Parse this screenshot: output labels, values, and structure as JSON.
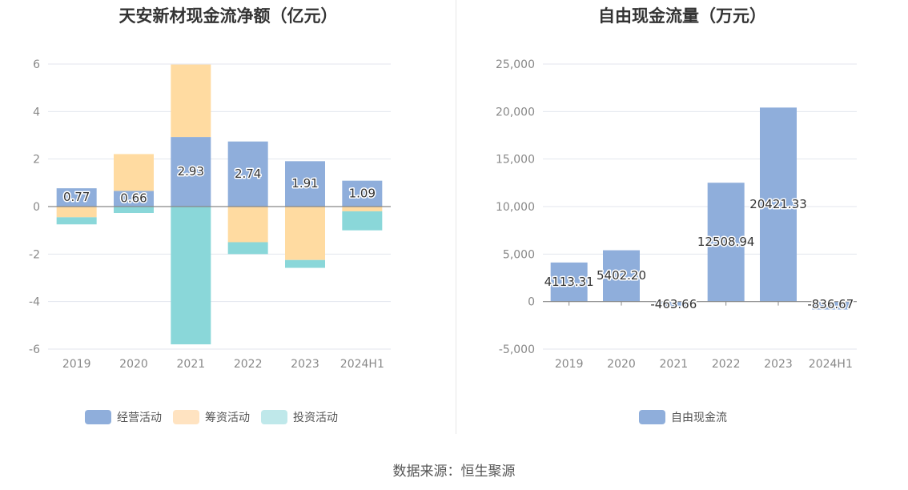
{
  "chart_data": [
    {
      "type": "bar",
      "stacked": true,
      "title": "天安新材现金流净额（亿元）",
      "categories": [
        "2019",
        "2020",
        "2021",
        "2022",
        "2023",
        "2024H1"
      ],
      "series": [
        {
          "name": "经营活动",
          "color": "#8faedb",
          "values": [
            0.77,
            0.66,
            2.93,
            2.74,
            1.91,
            1.09
          ]
        },
        {
          "name": "筹资活动",
          "color": "#ffdba1",
          "values": [
            -0.45,
            1.55,
            3.05,
            -1.5,
            -2.25,
            -0.2
          ]
        },
        {
          "name": "投资活动",
          "color": "#8ad7d9",
          "values": [
            -0.3,
            -0.27,
            -5.8,
            -0.5,
            -0.33,
            -0.8
          ]
        }
      ],
      "data_labels": [
        "0.77",
        "0.66",
        "2.93",
        "2.74",
        "1.91",
        "1.09"
      ],
      "ylim": [
        -6,
        6
      ],
      "yticks": [
        6,
        4,
        2,
        0,
        -2,
        -4,
        -6
      ],
      "ytick_labels": [
        "6",
        "4",
        "2",
        "0",
        "-2",
        "-4",
        "-6"
      ],
      "legend": [
        {
          "label": "经营活动",
          "color": "#8faedb"
        },
        {
          "label": "筹资活动",
          "color": "#ffe3c1"
        },
        {
          "label": "投资活动",
          "color": "#bfe8ea"
        }
      ]
    },
    {
      "type": "bar",
      "title": "自由现金流量（万元）",
      "categories": [
        "2019",
        "2020",
        "2021",
        "2022",
        "2023",
        "2024H1"
      ],
      "series": [
        {
          "name": "自由现金流",
          "color": "#8faedb",
          "values": [
            4113.31,
            5402.2,
            -463.66,
            12508.94,
            20421.33,
            -836.67
          ]
        }
      ],
      "data_labels": [
        "4113.31",
        "5402.20",
        "-463.66",
        "12508.94",
        "20421.33",
        "-836.67"
      ],
      "ylim": [
        -5000,
        25000
      ],
      "yticks": [
        25000,
        20000,
        15000,
        10000,
        5000,
        0,
        -5000
      ],
      "ytick_labels": [
        "25,000",
        "20,000",
        "15,000",
        "10,000",
        "5,000",
        "0",
        "-5,000"
      ],
      "legend": [
        {
          "label": "自由现金流",
          "color": "#8faedb"
        }
      ]
    }
  ],
  "source": "数据来源：恒生聚源"
}
